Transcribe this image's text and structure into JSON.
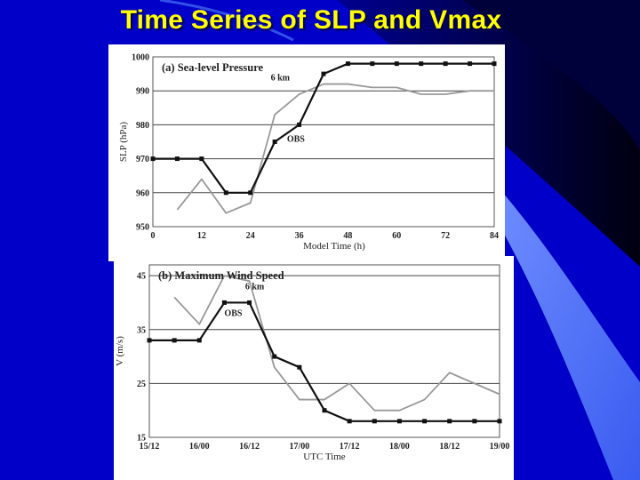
{
  "slide": {
    "title": "Time Series of SLP and Vmax"
  },
  "chart_data": [
    {
      "type": "line",
      "title": "(a) Sea-level Pressure",
      "xlabel": "Model Time (h)",
      "ylabel": "SLP (hPa)",
      "x_ticks": [
        0,
        12,
        24,
        36,
        48,
        60,
        72,
        84
      ],
      "y_ticks": [
        950,
        960,
        970,
        980,
        990,
        1000
      ],
      "xlim": [
        0,
        84
      ],
      "ylim": [
        950,
        1000
      ],
      "grid": "horizontal",
      "annotations": [
        "6 km",
        "OBS"
      ],
      "series": [
        {
          "name": "OBS",
          "color": "#111111",
          "markers": true,
          "x": [
            0,
            6,
            12,
            18,
            24,
            30,
            36,
            42,
            48,
            54,
            60,
            66,
            72,
            78,
            84
          ],
          "values": [
            970,
            970,
            970,
            960,
            960,
            975,
            980,
            995,
            998,
            998,
            998,
            998,
            998,
            998,
            998
          ]
        },
        {
          "name": "6 km",
          "color": "#999999",
          "markers": false,
          "x": [
            6,
            12,
            18,
            24,
            30,
            36,
            42,
            48,
            54,
            60,
            66,
            72,
            78,
            84
          ],
          "values": [
            955,
            964,
            954,
            957,
            983,
            989,
            992,
            992,
            991,
            991,
            989,
            989,
            990,
            990
          ]
        }
      ]
    },
    {
      "type": "line",
      "title": "(b) Maximum Wind Speed",
      "xlabel": "UTC Time",
      "ylabel": "V (m/s)",
      "x_ticks": [
        "15/12",
        "16/00",
        "16/12",
        "17/00",
        "17/12",
        "18/00",
        "18/12",
        "19/00"
      ],
      "y_ticks": [
        15,
        25,
        35,
        45
      ],
      "xlim": [
        0,
        84
      ],
      "ylim": [
        15,
        47
      ],
      "grid": "horizontal",
      "annotations": [
        "6 km",
        "OBS"
      ],
      "series": [
        {
          "name": "OBS",
          "color": "#111111",
          "markers": true,
          "x": [
            0,
            6,
            12,
            18,
            24,
            30,
            36,
            42,
            48,
            54,
            60,
            66,
            72,
            78,
            84
          ],
          "values": [
            33,
            33,
            33,
            40,
            40,
            30,
            28,
            20,
            18,
            18,
            18,
            18,
            18,
            18,
            18
          ]
        },
        {
          "name": "6 km",
          "color": "#999999",
          "markers": false,
          "x": [
            6,
            12,
            18,
            24,
            30,
            36,
            42,
            48,
            54,
            60,
            66,
            72,
            78,
            84
          ],
          "values": [
            41,
            36,
            45,
            44,
            28,
            22,
            22,
            25,
            20,
            20,
            22,
            27,
            25,
            23
          ]
        }
      ]
    }
  ]
}
